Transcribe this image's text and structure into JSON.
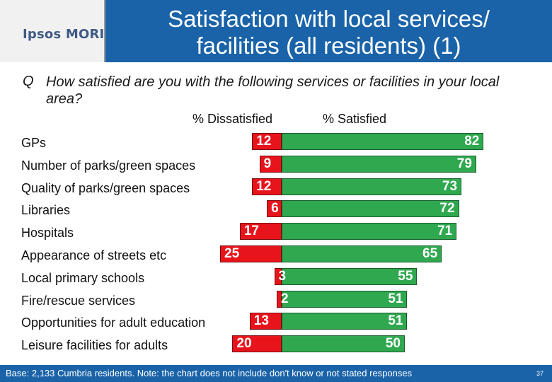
{
  "logo": {
    "text": "Ipsos MORI"
  },
  "header": {
    "title_line1": "Satisfaction with local services/",
    "title_line2": "facilities (all residents) (1)"
  },
  "question": {
    "prefix": "Q",
    "text": "How satisfied are you with the following services or facilities in your local area?"
  },
  "chart_data": {
    "type": "bar",
    "orientation": "horizontal-diverging",
    "categories": [
      "GPs",
      "Number of parks/green spaces",
      "Quality of parks/green spaces",
      "Libraries",
      "Hospitals",
      "Appearance of streets etc",
      "Local primary schools",
      "Fire/rescue services",
      "Opportunities for adult education",
      "Leisure facilities for adults"
    ],
    "series": [
      {
        "name": "% Dissatisfied",
        "color": "#e8141c",
        "values": [
          12,
          9,
          12,
          6,
          17,
          25,
          3,
          2,
          13,
          20
        ]
      },
      {
        "name": "% Satisfied",
        "color": "#2fa84f",
        "values": [
          82,
          79,
          73,
          72,
          71,
          65,
          55,
          51,
          51,
          50
        ]
      }
    ],
    "value_labels": {
      "dissatisfied": [
        "12",
        "9",
        "12",
        "6",
        "17",
        "25",
        "3",
        "2",
        "13",
        "20"
      ],
      "satisfied": [
        "82",
        "79",
        "73",
        "72",
        "71",
        "65",
        "55",
        "51",
        "51",
        "50"
      ]
    },
    "legend": "top"
  },
  "footer": {
    "note": "Base: 2,133 Cumbria residents. Note: the chart does not include don't know or not stated responses",
    "page": "37"
  }
}
